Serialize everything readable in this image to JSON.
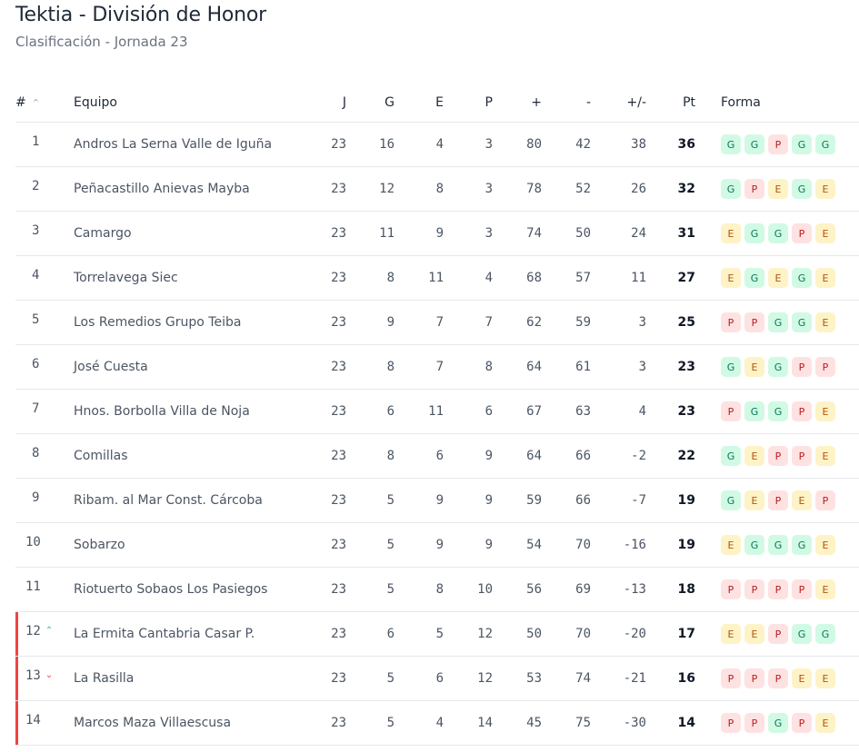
{
  "page": {
    "title": "Tektia - División de Honor",
    "subtitle": "Clasificación - Jornada 23"
  },
  "columns": {
    "pos": "#",
    "team": "Equipo",
    "j": "J",
    "g": "G",
    "e": "E",
    "p": "P",
    "plus": "+",
    "minus": "-",
    "diff": "+/-",
    "pt": "Pt",
    "form": "Forma"
  },
  "colors": {
    "relegation": "#ef4444",
    "win": "#d1fae5",
    "draw": "#fef3c7",
    "loss": "#fee2e2",
    "up": "#22c55e",
    "down": "#ef4444"
  },
  "rows": [
    {
      "pos": "1",
      "team": "Andros La Serna Valle de Iguña",
      "j": "23",
      "g": "16",
      "e": "4",
      "p": "3",
      "plus": "80",
      "minus": "42",
      "diff": "38",
      "pt": "36",
      "form": [
        "G",
        "G",
        "P",
        "G",
        "G"
      ],
      "trend": "",
      "relegation": false
    },
    {
      "pos": "2",
      "team": "Peñacastillo Anievas Mayba",
      "j": "23",
      "g": "12",
      "e": "8",
      "p": "3",
      "plus": "78",
      "minus": "52",
      "diff": "26",
      "pt": "32",
      "form": [
        "G",
        "P",
        "E",
        "G",
        "E"
      ],
      "trend": "",
      "relegation": false
    },
    {
      "pos": "3",
      "team": "Camargo",
      "j": "23",
      "g": "11",
      "e": "9",
      "p": "3",
      "plus": "74",
      "minus": "50",
      "diff": "24",
      "pt": "31",
      "form": [
        "E",
        "G",
        "G",
        "P",
        "E"
      ],
      "trend": "",
      "relegation": false
    },
    {
      "pos": "4",
      "team": "Torrelavega Siec",
      "j": "23",
      "g": "8",
      "e": "11",
      "p": "4",
      "plus": "68",
      "minus": "57",
      "diff": "11",
      "pt": "27",
      "form": [
        "E",
        "G",
        "E",
        "G",
        "E"
      ],
      "trend": "",
      "relegation": false
    },
    {
      "pos": "5",
      "team": "Los Remedios Grupo Teiba",
      "j": "23",
      "g": "9",
      "e": "7",
      "p": "7",
      "plus": "62",
      "minus": "59",
      "diff": "3",
      "pt": "25",
      "form": [
        "P",
        "P",
        "G",
        "G",
        "E"
      ],
      "trend": "",
      "relegation": false
    },
    {
      "pos": "6",
      "team": "José Cuesta",
      "j": "23",
      "g": "8",
      "e": "7",
      "p": "8",
      "plus": "64",
      "minus": "61",
      "diff": "3",
      "pt": "23",
      "form": [
        "G",
        "E",
        "G",
        "P",
        "P"
      ],
      "trend": "",
      "relegation": false
    },
    {
      "pos": "7",
      "team": "Hnos. Borbolla Villa de Noja",
      "j": "23",
      "g": "6",
      "e": "11",
      "p": "6",
      "plus": "67",
      "minus": "63",
      "diff": "4",
      "pt": "23",
      "form": [
        "P",
        "G",
        "G",
        "P",
        "E"
      ],
      "trend": "",
      "relegation": false
    },
    {
      "pos": "8",
      "team": "Comillas",
      "j": "23",
      "g": "8",
      "e": "6",
      "p": "9",
      "plus": "64",
      "minus": "66",
      "diff": "-2",
      "pt": "22",
      "form": [
        "G",
        "E",
        "P",
        "P",
        "E"
      ],
      "trend": "",
      "relegation": false
    },
    {
      "pos": "9",
      "team": "Ribam. al Mar Const. Cárcoba",
      "j": "23",
      "g": "5",
      "e": "9",
      "p": "9",
      "plus": "59",
      "minus": "66",
      "diff": "-7",
      "pt": "19",
      "form": [
        "G",
        "E",
        "P",
        "E",
        "P"
      ],
      "trend": "",
      "relegation": false
    },
    {
      "pos": "10",
      "team": "Sobarzo",
      "j": "23",
      "g": "5",
      "e": "9",
      "p": "9",
      "plus": "54",
      "minus": "70",
      "diff": "-16",
      "pt": "19",
      "form": [
        "E",
        "G",
        "G",
        "G",
        "E"
      ],
      "trend": "",
      "relegation": false
    },
    {
      "pos": "11",
      "team": "Riotuerto Sobaos Los Pasiegos",
      "j": "23",
      "g": "5",
      "e": "8",
      "p": "10",
      "plus": "56",
      "minus": "69",
      "diff": "-13",
      "pt": "18",
      "form": [
        "P",
        "P",
        "P",
        "P",
        "E"
      ],
      "trend": "",
      "relegation": false
    },
    {
      "pos": "12",
      "team": "La Ermita Cantabria Casar P.",
      "j": "23",
      "g": "6",
      "e": "5",
      "p": "12",
      "plus": "50",
      "minus": "70",
      "diff": "-20",
      "pt": "17",
      "form": [
        "E",
        "E",
        "P",
        "G",
        "G"
      ],
      "trend": "up",
      "relegation": true
    },
    {
      "pos": "13",
      "team": "La Rasilla",
      "j": "23",
      "g": "5",
      "e": "6",
      "p": "12",
      "plus": "53",
      "minus": "74",
      "diff": "-21",
      "pt": "16",
      "form": [
        "P",
        "P",
        "P",
        "E",
        "E"
      ],
      "trend": "down",
      "relegation": true
    },
    {
      "pos": "14",
      "team": "Marcos Maza Villaescusa",
      "j": "23",
      "g": "5",
      "e": "4",
      "p": "14",
      "plus": "45",
      "minus": "75",
      "diff": "-30",
      "pt": "14",
      "form": [
        "P",
        "P",
        "G",
        "P",
        "E"
      ],
      "trend": "",
      "relegation": true
    }
  ]
}
